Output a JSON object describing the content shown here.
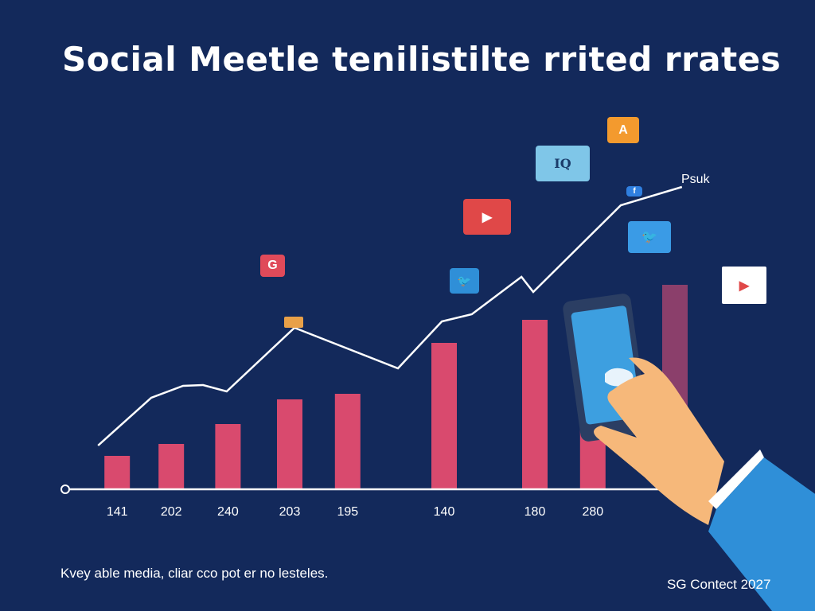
{
  "title": "Social Meetle tenilistilte rrited rrates",
  "footer_note": "Kvey able media, cliar cco pot er no lesteles.",
  "credit": "SG Contect 2027",
  "colors": {
    "background": "#13295b",
    "bar": "#d94a6e",
    "bar_last": "#8b3f6b",
    "line": "#ffffff",
    "axis": "#ffffff"
  },
  "chart_data": {
    "type": "bar",
    "title": "Social Meetle tenilistilte rrited rrates",
    "xlabel": "",
    "ylabel": "",
    "ylim": [
      0,
      400
    ],
    "xlim": [
      0,
      100
    ],
    "grid": false,
    "axis_origin_label": "0",
    "bars": [
      {
        "x": 8.4,
        "value": 42,
        "label": "141"
      },
      {
        "x": 16.9,
        "value": 57,
        "label": "202"
      },
      {
        "x": 25.8,
        "value": 82,
        "label": "240"
      },
      {
        "x": 35.5,
        "value": 113,
        "label": "203"
      },
      {
        "x": 44.6,
        "value": 120,
        "label": "195"
      },
      {
        "x": 59.75,
        "value": 184,
        "label": "140"
      },
      {
        "x": 74,
        "value": 213,
        "label": "180"
      },
      {
        "x": 83.1,
        "value": 105,
        "label": "280"
      },
      {
        "x": 96,
        "value": 257,
        "label": ""
      }
    ],
    "line": {
      "name": "Psuk",
      "points": [
        [
          5.4,
          55
        ],
        [
          13.75,
          115
        ],
        [
          18.75,
          130
        ],
        [
          21.9,
          131
        ],
        [
          25.6,
          123
        ],
        [
          36.25,
          203
        ],
        [
          52.5,
          152
        ],
        [
          59.4,
          211
        ],
        [
          64.1,
          220
        ],
        [
          71.9,
          267
        ],
        [
          73.75,
          248
        ],
        [
          87.5,
          357
        ],
        [
          97.1,
          380
        ]
      ]
    }
  },
  "icons": [
    {
      "name": "google-icon",
      "glyph": "G",
      "color": "#e04a5a"
    },
    {
      "name": "youtube-icon",
      "glyph": "▶",
      "color": "#e04848"
    },
    {
      "name": "twitter-icon",
      "glyph": "🐦",
      "color": "#2f8fd8"
    },
    {
      "name": "chat-bubble-icon",
      "glyph": "IQ",
      "color": "#7fc6e8"
    },
    {
      "name": "letter-a-icon",
      "glyph": "A",
      "color": "#f39a2e"
    },
    {
      "name": "facebook-icon",
      "glyph": "f",
      "color": "#2f7fe0"
    },
    {
      "name": "twitter-bubble-icon",
      "glyph": "🐦",
      "color": "#3a9be6"
    },
    {
      "name": "video-card-icon",
      "glyph": "▶",
      "color": "#ffffff"
    }
  ]
}
